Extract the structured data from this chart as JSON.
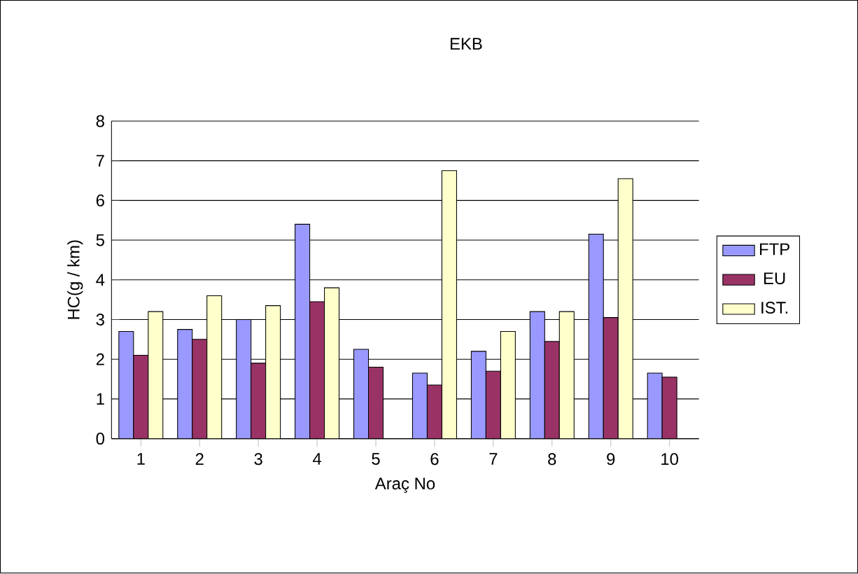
{
  "chart_data": {
    "type": "bar",
    "title": "EKB",
    "xlabel": "Araç No",
    "ylabel": "HC(g / km)",
    "categories": [
      "1",
      "2",
      "3",
      "4",
      "5",
      "6",
      "7",
      "8",
      "9",
      "10"
    ],
    "series": [
      {
        "name": "FTP",
        "color": "#9999ff",
        "values": [
          2.7,
          2.75,
          3.0,
          5.4,
          2.25,
          1.65,
          2.2,
          3.2,
          5.15,
          1.65
        ]
      },
      {
        "name": "EU",
        "color": "#993366",
        "values": [
          2.1,
          2.5,
          1.9,
          3.45,
          1.8,
          1.35,
          1.7,
          2.45,
          3.05,
          1.55
        ]
      },
      {
        "name": "IST.",
        "color": "#ffffcc",
        "values": [
          3.2,
          3.6,
          3.35,
          3.8,
          null,
          6.75,
          2.7,
          3.2,
          6.55,
          null
        ]
      }
    ],
    "ylim": [
      0,
      8
    ],
    "yticks": [
      0,
      1,
      2,
      3,
      4,
      5,
      6,
      7,
      8
    ],
    "grid": "y",
    "legend": "right"
  }
}
